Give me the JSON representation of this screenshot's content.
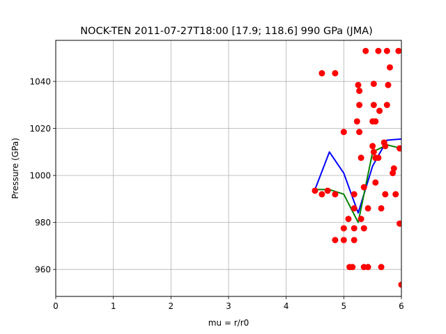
{
  "chart_data": {
    "type": "scatter",
    "title": "NOCK-TEN 2011-07-27T18:00 [17.9; 118.6] 990 GPa (JMA)",
    "xlabel": "mu = r/r0",
    "ylabel": "Pressure (GPa)",
    "xlim": [
      0,
      6
    ],
    "ylim": [
      948.5,
      1057.5
    ],
    "xticks": [
      0,
      1,
      2,
      3,
      4,
      5,
      6
    ],
    "xtick_labels": [
      "0",
      "1",
      "2",
      "3",
      "4",
      "5",
      "6"
    ],
    "yticks": [
      960,
      980,
      1000,
      1020,
      1040
    ],
    "ytick_labels": [
      "960",
      "980",
      "1000",
      "1020",
      "1040"
    ],
    "grid": true,
    "legend": "none",
    "scatter": {
      "color": "#ff0000",
      "points": [
        [
          4.5,
          993.5
        ],
        [
          4.62,
          992
        ],
        [
          4.62,
          1043.5
        ],
        [
          4.72,
          993.5
        ],
        [
          4.85,
          992
        ],
        [
          4.85,
          972.5
        ],
        [
          4.85,
          1043.5
        ],
        [
          5.0,
          1018.5
        ],
        [
          5.0,
          977.5
        ],
        [
          5.0,
          972.5
        ],
        [
          5.08,
          981.5
        ],
        [
          5.1,
          961
        ],
        [
          5.15,
          961
        ],
        [
          5.18,
          992
        ],
        [
          5.18,
          986
        ],
        [
          5.18,
          977.5
        ],
        [
          5.18,
          972.5
        ],
        [
          5.23,
          1023
        ],
        [
          5.25,
          1038.5
        ],
        [
          5.27,
          1036
        ],
        [
          5.27,
          1030
        ],
        [
          5.27,
          1018.5
        ],
        [
          5.3,
          1007.5
        ],
        [
          5.3,
          981.5
        ],
        [
          5.35,
          995
        ],
        [
          5.35,
          977.5
        ],
        [
          5.35,
          961
        ],
        [
          5.38,
          1053
        ],
        [
          5.42,
          986
        ],
        [
          5.42,
          961
        ],
        [
          5.5,
          1023
        ],
        [
          5.5,
          1012.5
        ],
        [
          5.52,
          1039
        ],
        [
          5.52,
          1030
        ],
        [
          5.52,
          1010
        ],
        [
          5.55,
          1023
        ],
        [
          5.55,
          1007.5
        ],
        [
          5.55,
          997
        ],
        [
          5.6,
          1053
        ],
        [
          5.6,
          1007.5
        ],
        [
          5.62,
          1027.5
        ],
        [
          5.65,
          986
        ],
        [
          5.65,
          961
        ],
        [
          5.7,
          1014
        ],
        [
          5.72,
          1012.5
        ],
        [
          5.72,
          992
        ],
        [
          5.75,
          1053
        ],
        [
          5.75,
          1030
        ],
        [
          5.77,
          1038.5
        ],
        [
          5.8,
          1046
        ],
        [
          5.85,
          1001
        ],
        [
          5.87,
          1003
        ],
        [
          5.9,
          992
        ],
        [
          5.95,
          1053
        ],
        [
          5.97,
          1011.5
        ],
        [
          5.97,
          979.5
        ],
        [
          6.0,
          953.5
        ]
      ]
    },
    "series": [
      {
        "color": "#0000ff",
        "x": [
          4.5,
          4.75,
          5.0,
          5.25,
          5.5,
          5.75,
          6.0
        ],
        "y": [
          994,
          1010,
          1001,
          984,
          1004,
          1015,
          1015.5
        ]
      },
      {
        "color": "#008000",
        "x": [
          4.5,
          4.75,
          5.0,
          5.25,
          5.5,
          5.75,
          6.0
        ],
        "y": [
          994,
          994,
          992,
          980,
          1010,
          1013,
          1011.5
        ]
      }
    ]
  }
}
